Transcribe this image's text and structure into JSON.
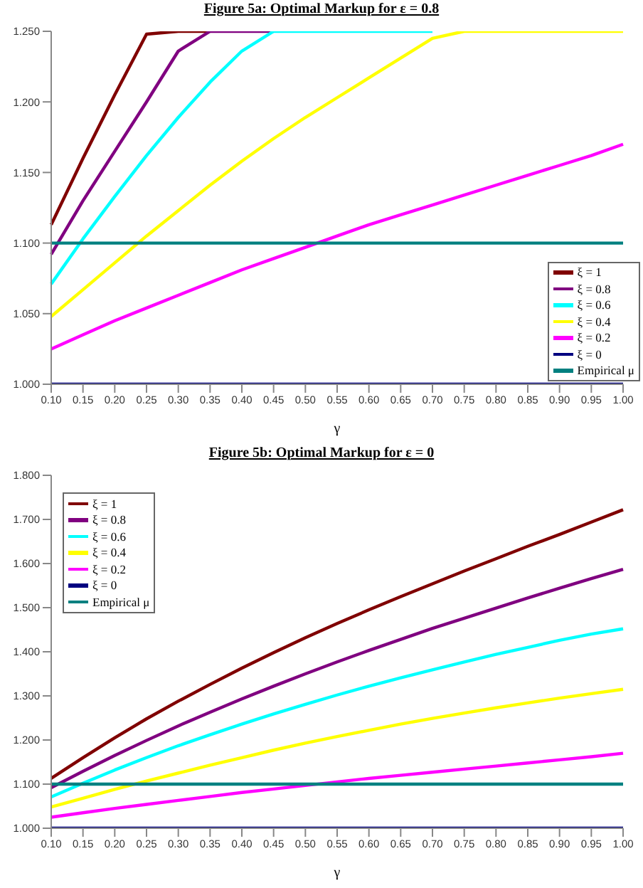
{
  "chart_data": [
    {
      "type": "line",
      "title": "Figure 5a: Optimal Markup for ε = 0.8",
      "xlabel": "γ",
      "categories": [
        "0.10",
        "0.15",
        "0.20",
        "0.25",
        "0.30",
        "0.35",
        "0.40",
        "0.45",
        "0.50",
        "0.55",
        "0.60",
        "0.65",
        "0.70",
        "0.75",
        "0.80",
        "0.85",
        "0.90",
        "0.95",
        "1.00"
      ],
      "ylim": [
        1.0,
        1.25
      ],
      "yticks": [
        {
          "value": 1.0,
          "label": "1.000"
        },
        {
          "value": 1.05,
          "label": "1.050"
        },
        {
          "value": 1.1,
          "label": "1.100"
        },
        {
          "value": 1.15,
          "label": "1.150"
        },
        {
          "value": 1.2,
          "label": "1.200"
        },
        {
          "value": 1.25,
          "label": "1.250"
        }
      ],
      "legend": "bottom right",
      "series": [
        {
          "name": "ξ = 1",
          "color": "#800000",
          "values": [
            1.113,
            1.16,
            1.205,
            1.248,
            1.25,
            1.25,
            null,
            null,
            null,
            null,
            null,
            null,
            null,
            null,
            null,
            null,
            null,
            null,
            null
          ]
        },
        {
          "name": "ξ = 0.8",
          "color": "#800080",
          "values": [
            1.092,
            1.13,
            1.165,
            1.2,
            1.236,
            1.25,
            1.25,
            1.25,
            null,
            null,
            null,
            null,
            null,
            null,
            null,
            null,
            null,
            null,
            null
          ]
        },
        {
          "name": "ξ = 0.6",
          "color": "#00ffff",
          "values": [
            1.071,
            1.103,
            1.133,
            1.162,
            1.189,
            1.214,
            1.236,
            1.25,
            1.25,
            1.25,
            1.25,
            1.25,
            1.25,
            null,
            null,
            null,
            null,
            null,
            null
          ]
        },
        {
          "name": "ξ = 0.4",
          "color": "#ffff00",
          "values": [
            1.048,
            1.067,
            1.086,
            1.105,
            1.123,
            1.141,
            1.158,
            1.174,
            1.189,
            1.203,
            1.217,
            1.231,
            1.245,
            1.25,
            1.25,
            1.25,
            1.25,
            1.25,
            1.25
          ]
        },
        {
          "name": "ξ = 0.2",
          "color": "#ff00ff",
          "values": [
            1.025,
            1.035,
            1.045,
            1.054,
            1.063,
            1.072,
            1.081,
            1.089,
            1.097,
            1.105,
            1.113,
            1.12,
            1.127,
            1.134,
            1.141,
            1.148,
            1.155,
            1.162,
            1.17
          ]
        },
        {
          "name": "ξ = 0",
          "color": "#000080",
          "values": [
            1,
            1,
            1,
            1,
            1,
            1,
            1,
            1,
            1,
            1,
            1,
            1,
            1,
            1,
            1,
            1,
            1,
            1,
            1
          ]
        },
        {
          "name": "Empirical μ",
          "color": "#008080",
          "values": [
            1.1,
            1.1,
            1.1,
            1.1,
            1.1,
            1.1,
            1.1,
            1.1,
            1.1,
            1.1,
            1.1,
            1.1,
            1.1,
            1.1,
            1.1,
            1.1,
            1.1,
            1.1,
            1.1
          ]
        }
      ]
    },
    {
      "type": "line",
      "title": "Figure 5b: Optimal Markup for ε = 0",
      "xlabel": "γ",
      "categories": [
        "0.10",
        "0.15",
        "0.20",
        "0.25",
        "0.30",
        "0.35",
        "0.40",
        "0.45",
        "0.50",
        "0.55",
        "0.60",
        "0.65",
        "0.70",
        "0.75",
        "0.80",
        "0.85",
        "0.90",
        "0.95",
        "1.00"
      ],
      "ylim": [
        1.0,
        1.8
      ],
      "yticks": [
        {
          "value": 1.0,
          "label": "1.000"
        },
        {
          "value": 1.1,
          "label": "1.100"
        },
        {
          "value": 1.2,
          "label": "1.200"
        },
        {
          "value": 1.3,
          "label": "1.300"
        },
        {
          "value": 1.4,
          "label": "1.400"
        },
        {
          "value": 1.5,
          "label": "1.500"
        },
        {
          "value": 1.6,
          "label": "1.600"
        },
        {
          "value": 1.7,
          "label": "1.700"
        },
        {
          "value": 1.8,
          "label": "1.800"
        }
      ],
      "legend": "top left",
      "series": [
        {
          "name": "ξ = 1",
          "color": "#800000",
          "values": [
            1.113,
            1.16,
            1.205,
            1.248,
            1.288,
            1.326,
            1.363,
            1.398,
            1.432,
            1.464,
            1.495,
            1.525,
            1.554,
            1.583,
            1.611,
            1.639,
            1.666,
            1.694,
            1.722
          ]
        },
        {
          "name": "ξ = 0.8",
          "color": "#800080",
          "values": [
            1.092,
            1.129,
            1.165,
            1.199,
            1.232,
            1.263,
            1.293,
            1.322,
            1.35,
            1.377,
            1.403,
            1.428,
            1.453,
            1.476,
            1.499,
            1.522,
            1.544,
            1.566,
            1.587
          ]
        },
        {
          "name": "ξ = 0.6",
          "color": "#00ffff",
          "values": [
            1.071,
            1.102,
            1.132,
            1.16,
            1.187,
            1.212,
            1.236,
            1.259,
            1.281,
            1.302,
            1.322,
            1.341,
            1.359,
            1.377,
            1.394,
            1.41,
            1.426,
            1.44,
            1.452
          ]
        },
        {
          "name": "ξ = 0.4",
          "color": "#ffff00",
          "values": [
            1.048,
            1.068,
            1.088,
            1.107,
            1.125,
            1.143,
            1.16,
            1.177,
            1.193,
            1.208,
            1.222,
            1.236,
            1.249,
            1.261,
            1.273,
            1.284,
            1.295,
            1.305,
            1.315
          ]
        },
        {
          "name": "ξ = 0.2",
          "color": "#ff00ff",
          "values": [
            1.025,
            1.035,
            1.045,
            1.054,
            1.063,
            1.072,
            1.081,
            1.089,
            1.097,
            1.105,
            1.113,
            1.12,
            1.127,
            1.134,
            1.141,
            1.148,
            1.155,
            1.162,
            1.17
          ]
        },
        {
          "name": "ξ = 0",
          "color": "#000080",
          "values": [
            1,
            1,
            1,
            1,
            1,
            1,
            1,
            1,
            1,
            1,
            1,
            1,
            1,
            1,
            1,
            1,
            1,
            1,
            1
          ]
        },
        {
          "name": "Empirical μ",
          "color": "#008080",
          "values": [
            1.1,
            1.1,
            1.1,
            1.1,
            1.1,
            1.1,
            1.1,
            1.1,
            1.1,
            1.1,
            1.1,
            1.1,
            1.1,
            1.1,
            1.1,
            1.1,
            1.1,
            1.1,
            1.1
          ]
        }
      ]
    }
  ]
}
